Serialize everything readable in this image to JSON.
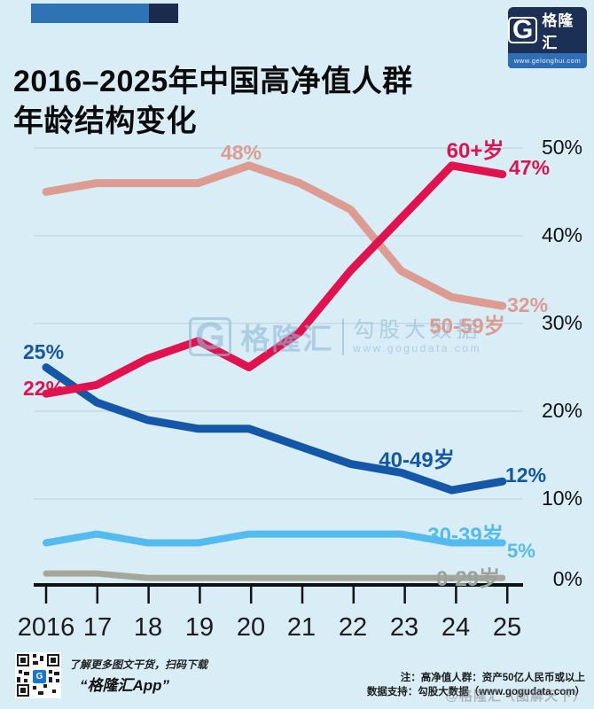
{
  "header": {
    "title_line1": "2016–2025年中国高净值人群",
    "title_line2": "年龄结构变化",
    "logo": {
      "glyph": "G",
      "brand": "格隆汇",
      "url": "www.gelonghui.com"
    }
  },
  "colors": {
    "background": "#d8edf6",
    "axis": "#111111",
    "gridline": "#c2d5dd",
    "series_60plus": "#e0134f",
    "series_50_59": "#dd9c92",
    "series_40_49": "#1457a8",
    "series_30_39": "#54bbee",
    "series_0_29": "#a5a79a"
  },
  "chart_data": {
    "type": "line",
    "title": "2016–2025年中国高净值人群年龄结构变化",
    "x": [
      2016,
      2017,
      2018,
      2019,
      2020,
      2021,
      2022,
      2023,
      2024,
      2025
    ],
    "x_tick_labels": [
      "2016",
      "17",
      "18",
      "19",
      "20",
      "21",
      "22",
      "23",
      "24",
      "25"
    ],
    "y_tick_labels": [
      "50%",
      "40%",
      "30%",
      "20%",
      "10%",
      "0%"
    ],
    "ylim": [
      0,
      50
    ],
    "grid": true,
    "legend": "inline-labels",
    "unit": "%",
    "series": [
      {
        "name": "60+岁",
        "color": "#e0134f",
        "values": [
          22,
          23,
          26,
          28,
          25,
          29,
          36,
          42,
          48,
          47
        ],
        "start_label": "22%",
        "end_label": "47%"
      },
      {
        "name": "50-59岁",
        "color": "#dd9c92",
        "values": [
          45,
          46,
          46,
          46,
          48,
          46,
          43,
          36,
          33,
          32
        ],
        "peak_label": "48%",
        "end_label": "32%"
      },
      {
        "name": "40-49岁",
        "color": "#1457a8",
        "values": [
          25,
          21,
          19,
          18,
          18,
          16,
          14,
          13,
          11,
          12
        ],
        "start_label": "25%",
        "end_label": "12%"
      },
      {
        "name": "30-39岁",
        "color": "#54bbee",
        "values": [
          5,
          6,
          5,
          5,
          6,
          6,
          6,
          6,
          5,
          5
        ],
        "end_label": "5%"
      },
      {
        "name": "0-29岁",
        "color": "#a5a79a",
        "values": [
          1.5,
          1.5,
          1,
          1,
          1,
          1,
          1,
          1,
          1,
          1
        ]
      }
    ]
  },
  "watermark_center": {
    "glyph": "G",
    "brand": "格隆汇",
    "source": "勾股大数据",
    "url": "www.gogudata.com"
  },
  "footer": {
    "scan_text": "了解更多图文干货，扫码下载",
    "app_name": "“格隆汇App”",
    "note_line1": "注：高净值人群：资产50亿人民币或以上",
    "note_line2": "数据支持：勾股大数据（www.gogudata.com）",
    "watermark": "@格隆汇（图解天下）"
  }
}
